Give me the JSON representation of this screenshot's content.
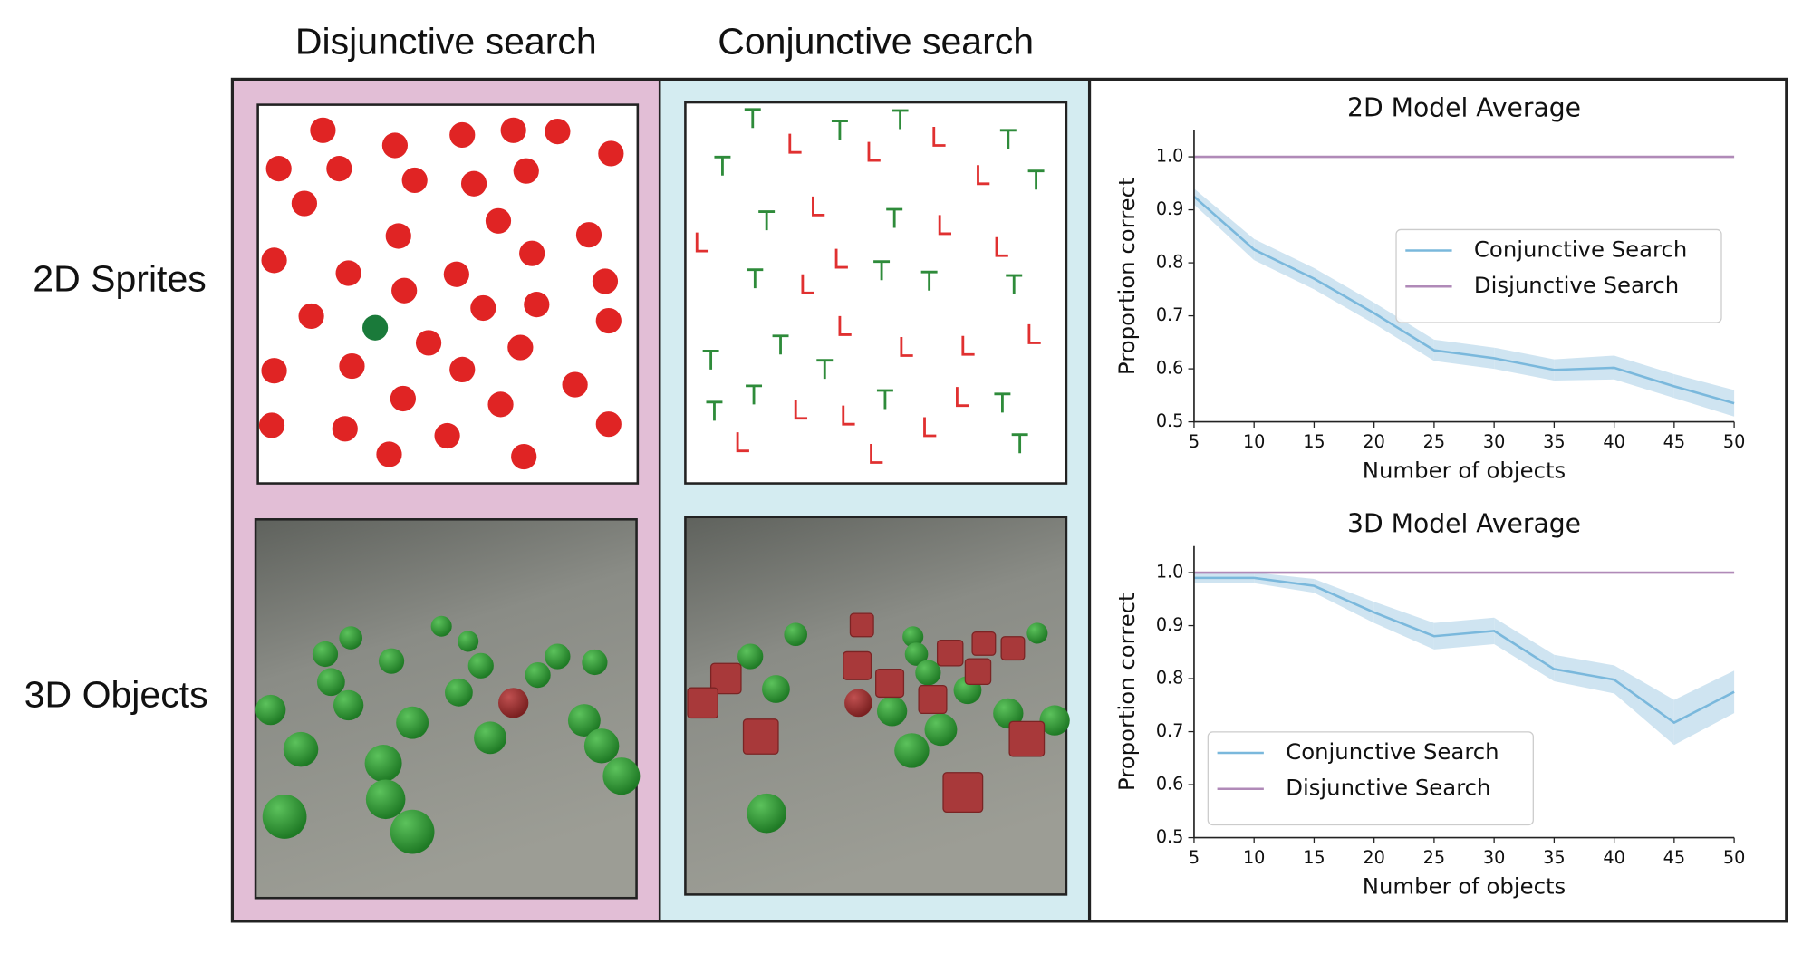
{
  "columns": [
    "Disjunctive search",
    "Conjunctive search"
  ],
  "rows": [
    "2D Sprites",
    "3D Objects"
  ],
  "chart_data": [
    {
      "type": "line",
      "title": "2D Model Average",
      "x_label": "Number of objects",
      "y_label": "Proportion correct",
      "x": [
        5,
        10,
        15,
        20,
        25,
        30,
        35,
        40,
        45,
        50
      ],
      "xlim": [
        5,
        50
      ],
      "xticks": [
        5,
        10,
        15,
        20,
        25,
        30,
        35,
        40,
        45,
        50
      ],
      "ylim": [
        0.5,
        1.05
      ],
      "yticks": [
        0.5,
        0.6,
        0.7,
        0.8,
        0.9,
        {
          "value": 1,
          "label": "1.0"
        }
      ],
      "legend": "center right",
      "series": [
        {
          "name": "Conjunctive Search",
          "color": "#7ab8dc",
          "band_color": "#cfe4f1",
          "values": [
            0.925,
            0.825,
            0.77,
            0.705,
            0.635,
            0.62,
            0.598,
            0.602,
            0.567,
            0.535
          ],
          "lower": [
            0.91,
            0.805,
            0.75,
            0.685,
            0.615,
            0.6,
            0.578,
            0.58,
            0.545,
            0.51
          ],
          "upper": [
            0.94,
            0.845,
            0.79,
            0.725,
            0.655,
            0.64,
            0.618,
            0.625,
            0.59,
            0.56
          ]
        },
        {
          "name": "Disjunctive Search",
          "color": "#b08ab8",
          "values": [
            1,
            1,
            1,
            1,
            1,
            1,
            1,
            1,
            1,
            1
          ]
        }
      ]
    },
    {
      "type": "line",
      "title": "3D Model Average",
      "x_label": "Number of objects",
      "y_label": "Proportion correct",
      "x": [
        5,
        10,
        15,
        20,
        25,
        30,
        35,
        40,
        45,
        50
      ],
      "xlim": [
        5,
        50
      ],
      "xticks": [
        5,
        10,
        15,
        20,
        25,
        30,
        35,
        40,
        45,
        50
      ],
      "ylim": [
        0.5,
        1.05
      ],
      "yticks": [
        0.5,
        0.6,
        0.7,
        0.8,
        0.9,
        {
          "value": 1,
          "label": "1.0"
        }
      ],
      "legend": "lower left",
      "series": [
        {
          "name": "Conjunctive Search",
          "color": "#7ab8dc",
          "band_color": "#cfe4f1",
          "values": [
            0.99,
            0.99,
            0.975,
            0.925,
            0.88,
            0.89,
            0.818,
            0.798,
            0.717,
            0.775
          ],
          "lower": [
            0.98,
            0.98,
            0.962,
            0.905,
            0.855,
            0.865,
            0.795,
            0.772,
            0.675,
            0.735
          ],
          "upper": [
            1.0,
            1.0,
            0.988,
            0.945,
            0.905,
            0.915,
            0.845,
            0.825,
            0.76,
            0.815
          ]
        },
        {
          "name": "Disjunctive Search",
          "color": "#b08ab8",
          "values": [
            1,
            1,
            1,
            1,
            1,
            1,
            1,
            1,
            1,
            1
          ]
        }
      ]
    }
  ]
}
